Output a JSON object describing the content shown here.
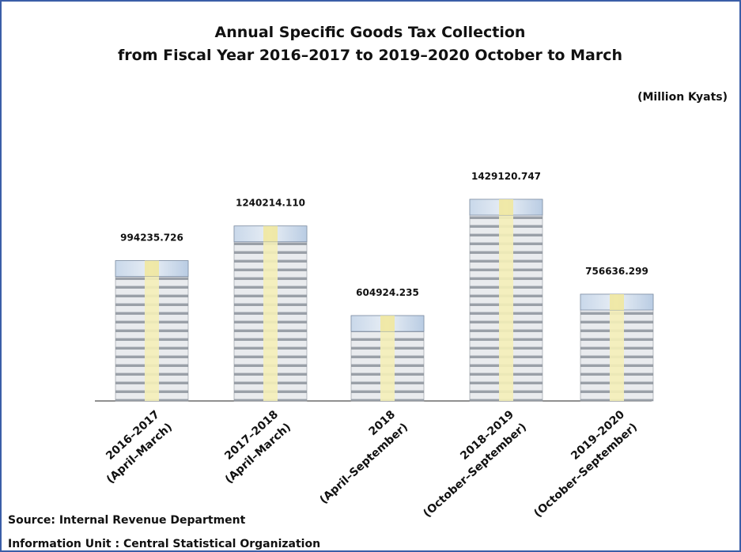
{
  "chart_data": {
    "type": "bar",
    "title": "Annual Specific Goods Tax Collection",
    "subtitle": "from Fiscal Year  2016–2017 to 2019–2020 October to March",
    "unit": "(Million Kyats)",
    "categories": [
      [
        "2016–2017",
        "(April–March)"
      ],
      [
        "2017–2018",
        "(April–March)"
      ],
      [
        "2018",
        "(April–September)"
      ],
      [
        "2018–2019",
        "(October–September)"
      ],
      [
        "2019–2020",
        "(October–September)"
      ]
    ],
    "values": [
      994235.726,
      1240214.11,
      604924.235,
      1429120.747,
      756636.299
    ],
    "value_labels": [
      "994235.726",
      "1240214.110",
      "604924.235",
      "1429120.747",
      "756636.299"
    ],
    "source": "Source: Internal Revenue Department",
    "info": "Information Unit :  Central Statistical Organization"
  }
}
